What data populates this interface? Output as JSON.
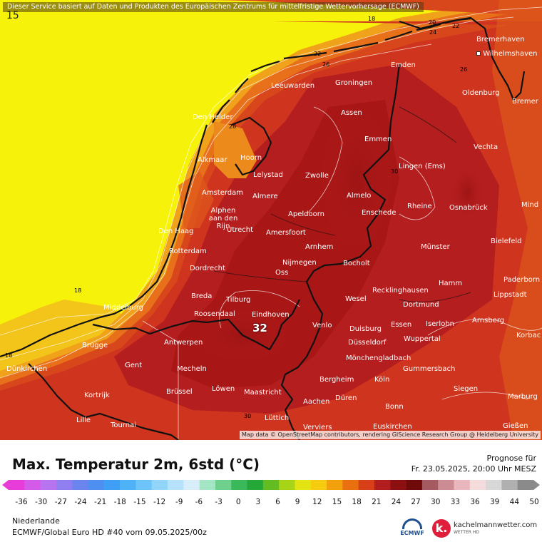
{
  "banner": "Dieser Service basiert auf Daten und Produkten des Europäischen Zentrums für mittelfristige Wettervorhersage (ECMWF)",
  "attribution": "Map data © OpenStreetMap contributors, rendering GIScience Research Group @ Heidelberg University",
  "corner_value": "15",
  "max_value": "32",
  "isolines": [
    {
      "text": "18",
      "at": "north"
    },
    {
      "text": "20",
      "at": "north-east"
    },
    {
      "text": "22",
      "at": "north-east"
    },
    {
      "text": "24",
      "at": "north-east"
    },
    {
      "text": "22",
      "at": "wadden"
    },
    {
      "text": "26",
      "at": "wadden"
    },
    {
      "text": "26",
      "at": "bremerhaven"
    },
    {
      "text": "28",
      "at": "den-helder"
    },
    {
      "text": "30",
      "at": "lingen"
    },
    {
      "text": "18",
      "at": "north-sea"
    },
    {
      "text": "18",
      "at": "west"
    },
    {
      "text": "30",
      "at": "luettich"
    }
  ],
  "cities": [
    {
      "name": "Bremerhaven"
    },
    {
      "name": "Wilhelmshaven"
    },
    {
      "name": "Emden"
    },
    {
      "name": "Leeuwarden"
    },
    {
      "name": "Groningen"
    },
    {
      "name": "Oldenburg"
    },
    {
      "name": "Bremer"
    },
    {
      "name": "Den Helder"
    },
    {
      "name": "Assen"
    },
    {
      "name": "Emmen"
    },
    {
      "name": "Vechta"
    },
    {
      "name": "Alkmaar"
    },
    {
      "name": "Hoorn"
    },
    {
      "name": "Lelystad"
    },
    {
      "name": "Zwolle"
    },
    {
      "name": "Lingen (Ems)"
    },
    {
      "name": "Amsterdam"
    },
    {
      "name": "Almere"
    },
    {
      "name": "Almelo"
    },
    {
      "name": "Alphen aan den Rijn"
    },
    {
      "name": "Apeldoorn"
    },
    {
      "name": "Enschede"
    },
    {
      "name": "Rheine"
    },
    {
      "name": "Osnabrück"
    },
    {
      "name": "Mind"
    },
    {
      "name": "Den Haag"
    },
    {
      "name": "Utrecht"
    },
    {
      "name": "Amersfoort"
    },
    {
      "name": "Arnhem"
    },
    {
      "name": "Münster"
    },
    {
      "name": "Bielefeld"
    },
    {
      "name": "Rotterdam"
    },
    {
      "name": "Nijmegen"
    },
    {
      "name": "Dordrecht"
    },
    {
      "name": "Oss"
    },
    {
      "name": "Bocholt"
    },
    {
      "name": "Paderborn"
    },
    {
      "name": "Hamm"
    },
    {
      "name": "Lippstadt"
    },
    {
      "name": "Breda"
    },
    {
      "name": "Tilburg"
    },
    {
      "name": "Middelburg"
    },
    {
      "name": "Recklinghausen"
    },
    {
      "name": "Wesel"
    },
    {
      "name": "Roosendaal"
    },
    {
      "name": "Eindhoven"
    },
    {
      "name": "Dortmund"
    },
    {
      "name": "Arnsberg"
    },
    {
      "name": "Venlo"
    },
    {
      "name": "Essen"
    },
    {
      "name": "Iserlohn"
    },
    {
      "name": "Duisburg"
    },
    {
      "name": "Korbac"
    },
    {
      "name": "Antwerpen"
    },
    {
      "name": "Brugge"
    },
    {
      "name": "Düsseldorf"
    },
    {
      "name": "Wuppertal"
    },
    {
      "name": "Mönchengladbach"
    },
    {
      "name": "Dünkirchen"
    },
    {
      "name": "Gent"
    },
    {
      "name": "Mecheln"
    },
    {
      "name": "Gummersbach"
    },
    {
      "name": "Bergheim"
    },
    {
      "name": "Köln"
    },
    {
      "name": "Brüssel"
    },
    {
      "name": "Löwen"
    },
    {
      "name": "Maastricht"
    },
    {
      "name": "Siegen"
    },
    {
      "name": "Kortrijk"
    },
    {
      "name": "Aachen"
    },
    {
      "name": "Düren"
    },
    {
      "name": "Marburg"
    },
    {
      "name": "Bonn"
    },
    {
      "name": "Lille"
    },
    {
      "name": "Tournai"
    },
    {
      "name": "Lüttich"
    },
    {
      "name": "Euskirchen"
    },
    {
      "name": "Gießen"
    },
    {
      "name": "Verviers"
    }
  ],
  "footer": {
    "title": "Max. Temperatur 2m, 6std (°C)",
    "prognose_label": "Prognose für",
    "prognose_date": "Fr. 23.05.2025, 20:00 Uhr MESZ",
    "region": "Niederlande",
    "model": "ECMWF/Global Euro HD #40 vom  09.05.2025/00z",
    "ecmwf_label": "ECMWF",
    "brand": "kachelmannwetter.com",
    "brand_sub": "WETTER HD"
  },
  "scale": {
    "ticks": [
      "-36",
      "-30",
      "-27",
      "-24",
      "-21",
      "-18",
      "-15",
      "-12",
      "-9",
      "-6",
      "-3",
      "0",
      "3",
      "6",
      "9",
      "12",
      "15",
      "18",
      "21",
      "24",
      "27",
      "30",
      "33",
      "36",
      "39",
      "44",
      "50"
    ],
    "colors": [
      "#e83cd8",
      "#d45ae8",
      "#b874ee",
      "#8f7ff0",
      "#6a86ee",
      "#4f8ff0",
      "#3f9ff4",
      "#4fb2f6",
      "#6ec4f8",
      "#92d4fa",
      "#b6e2fb",
      "#d8eefa",
      "#a4e6c4",
      "#6fd08e",
      "#3ab85a",
      "#25a838",
      "#64bc20",
      "#a8d418",
      "#e4e414",
      "#f6cc10",
      "#f2a00c",
      "#e8700e",
      "#d8401a",
      "#b21e1e",
      "#8c1010",
      "#6e0a0a",
      "#a45a60",
      "#cc8c94",
      "#e8b6bc",
      "#f4dcdc",
      "#d8d8d8",
      "#b0b0b0",
      "#8a8a8a"
    ],
    "min": -36,
    "max": 50
  },
  "colors": {
    "sea_cold": "#f7f20a",
    "sea_mid": "#f6d118",
    "warm_orange": "#e8701a",
    "red": "#d33a1e",
    "dark_red": "#b51e1e",
    "darkest": "#9a1212"
  }
}
